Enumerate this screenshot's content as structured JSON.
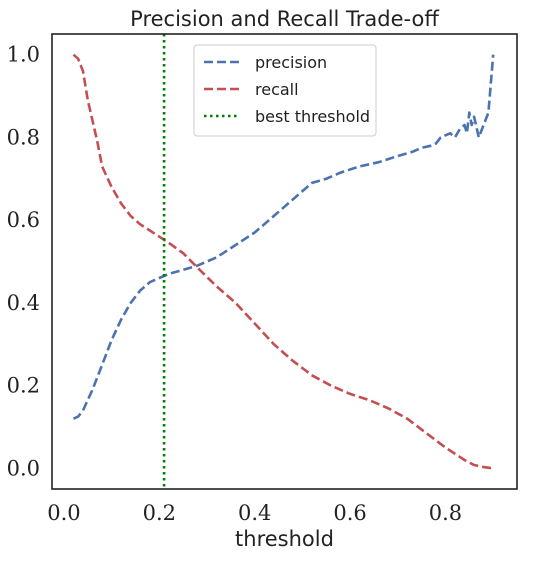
{
  "chart_data": {
    "type": "line",
    "title": "Precision and Recall Trade-off",
    "xlabel": "threshold",
    "ylabel": "",
    "xlim": [
      -0.025,
      0.95
    ],
    "ylim": [
      -0.05,
      1.05
    ],
    "xticks": [
      0.0,
      0.2,
      0.4,
      0.6,
      0.8
    ],
    "xtick_labels": [
      "0.0",
      "0.2",
      "0.4",
      "0.6",
      "0.8"
    ],
    "yticks": [
      0.0,
      0.2,
      0.4,
      0.6,
      0.8,
      1.0
    ],
    "ytick_labels": [
      "0.0",
      "0.2",
      "0.4",
      "0.6",
      "0.8",
      "1.0"
    ],
    "grid": false,
    "legend_position": "top-center",
    "series": [
      {
        "name": "precision",
        "color": "#4c72b0",
        "style": "dashed",
        "x": [
          0.02,
          0.03,
          0.04,
          0.06,
          0.08,
          0.1,
          0.12,
          0.14,
          0.16,
          0.18,
          0.2,
          0.22,
          0.25,
          0.28,
          0.32,
          0.36,
          0.4,
          0.44,
          0.48,
          0.52,
          0.55,
          0.58,
          0.62,
          0.66,
          0.7,
          0.73,
          0.75,
          0.77,
          0.78,
          0.79,
          0.8,
          0.81,
          0.82,
          0.83,
          0.84,
          0.845,
          0.85,
          0.855,
          0.86,
          0.87,
          0.88,
          0.89,
          0.9
        ],
        "y": [
          0.12,
          0.125,
          0.14,
          0.19,
          0.25,
          0.31,
          0.36,
          0.4,
          0.43,
          0.45,
          0.46,
          0.47,
          0.48,
          0.49,
          0.51,
          0.54,
          0.57,
          0.61,
          0.65,
          0.69,
          0.7,
          0.715,
          0.73,
          0.74,
          0.755,
          0.765,
          0.775,
          0.78,
          0.785,
          0.8,
          0.805,
          0.81,
          0.8,
          0.82,
          0.83,
          0.81,
          0.86,
          0.83,
          0.85,
          0.8,
          0.83,
          0.86,
          1.0
        ]
      },
      {
        "name": "recall",
        "color": "#c44e52",
        "style": "dashed",
        "x": [
          0.02,
          0.03,
          0.04,
          0.05,
          0.07,
          0.08,
          0.1,
          0.12,
          0.14,
          0.16,
          0.18,
          0.2,
          0.22,
          0.25,
          0.28,
          0.32,
          0.36,
          0.4,
          0.44,
          0.48,
          0.52,
          0.56,
          0.6,
          0.64,
          0.68,
          0.72,
          0.76,
          0.8,
          0.84,
          0.86,
          0.88,
          0.9
        ],
        "y": [
          1.0,
          0.99,
          0.96,
          0.89,
          0.79,
          0.73,
          0.68,
          0.64,
          0.61,
          0.59,
          0.575,
          0.56,
          0.545,
          0.52,
          0.485,
          0.44,
          0.4,
          0.35,
          0.3,
          0.26,
          0.225,
          0.2,
          0.18,
          0.165,
          0.145,
          0.12,
          0.085,
          0.05,
          0.02,
          0.008,
          0.003,
          0.0
        ]
      }
    ],
    "vlines": [
      {
        "name": "best threshold",
        "color": "#008000",
        "style": "dotted",
        "x": 0.21
      }
    ]
  }
}
